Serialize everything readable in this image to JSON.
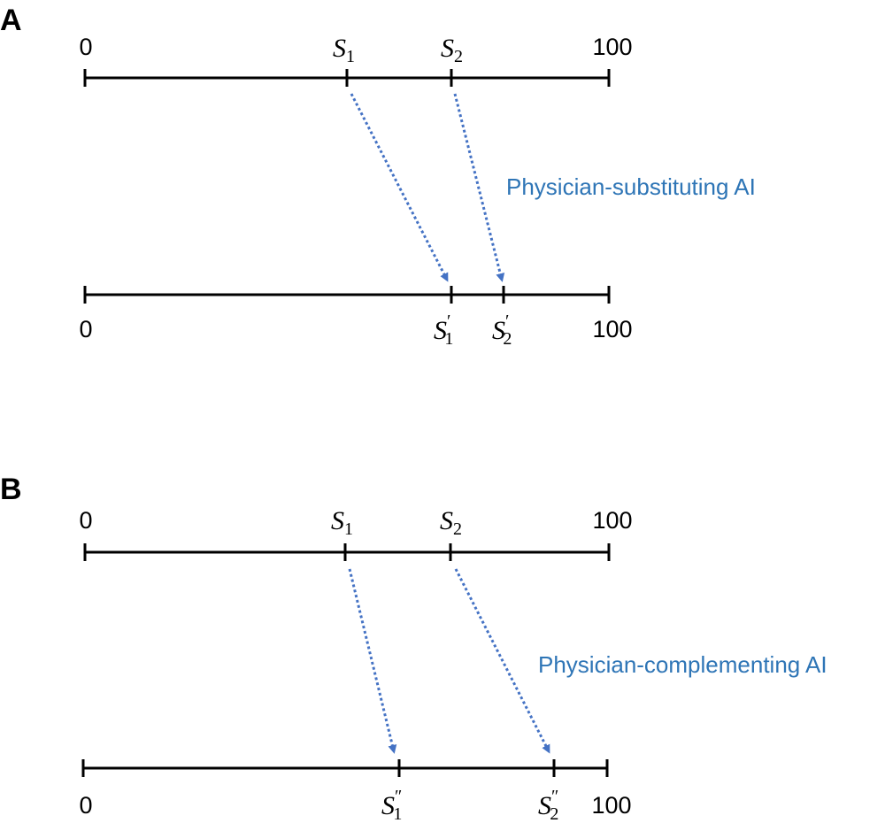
{
  "colors": {
    "arrow": "#4472C4",
    "label": "#2E75B6",
    "axis": "#000000"
  },
  "panels": [
    {
      "letter": "A",
      "ai_label": "Physician-substituting AI",
      "top_scale": {
        "min_label": "0",
        "max_label": "100",
        "markers": [
          {
            "symbol": "S",
            "subscript": "1",
            "prime": "",
            "value": 50
          },
          {
            "symbol": "S",
            "subscript": "2",
            "prime": "",
            "value": 70
          }
        ]
      },
      "bottom_scale": {
        "min_label": "0",
        "max_label": "100",
        "markers": [
          {
            "symbol": "S",
            "subscript": "1",
            "prime": "′",
            "value": 70
          },
          {
            "symbol": "S",
            "subscript": "2",
            "prime": "′",
            "value": 80
          }
        ]
      }
    },
    {
      "letter": "B",
      "ai_label": "Physician-complementing AI",
      "top_scale": {
        "min_label": "0",
        "max_label": "100",
        "markers": [
          {
            "symbol": "S",
            "subscript": "1",
            "prime": "",
            "value": 50
          },
          {
            "symbol": "S",
            "subscript": "2",
            "prime": "",
            "value": 70
          }
        ]
      },
      "bottom_scale": {
        "min_label": "0",
        "max_label": "100",
        "markers": [
          {
            "symbol": "S",
            "subscript": "1",
            "prime": "″",
            "value": 60
          },
          {
            "symbol": "S",
            "subscript": "2",
            "prime": "″",
            "value": 90
          }
        ]
      }
    }
  ]
}
